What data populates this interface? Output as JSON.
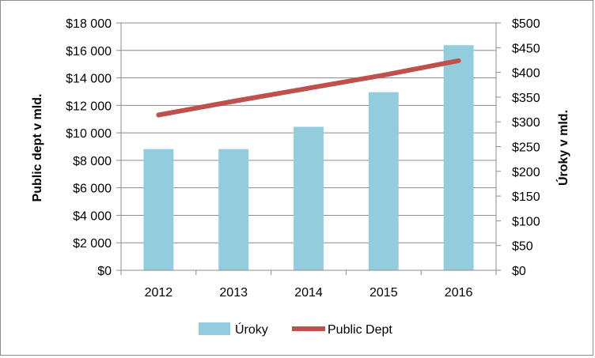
{
  "chart_data": {
    "type": "bar",
    "categories": [
      "2012",
      "2013",
      "2014",
      "2015",
      "2016"
    ],
    "series": [
      {
        "name": "Úroky",
        "type": "bar",
        "axis": "right",
        "color": "#93cddd",
        "values": [
          245,
          245,
          290,
          360,
          455
        ]
      },
      {
        "name": "Public Dept",
        "type": "line",
        "axis": "left",
        "color": "#c0504d",
        "values": [
          11300,
          12300,
          13250,
          14200,
          15250
        ]
      }
    ],
    "title": "",
    "xlabel": "",
    "ylabel": "Public dept v mld.",
    "y2label": "Úroky v mld.",
    "ylim": [
      0,
      18000
    ],
    "y2lim": [
      0,
      500
    ],
    "yticks": [
      "$0",
      "$2 000",
      "$4 000",
      "$6 000",
      "$8 000",
      "$10 000",
      "$12 000",
      "$14 000",
      "$16 000",
      "$18 000"
    ],
    "y2ticks": [
      "$0",
      "$50",
      "$100",
      "$150",
      "$200",
      "$250",
      "$300",
      "$350",
      "$400",
      "$450",
      "$500"
    ],
    "grid": true,
    "legend_position": "bottom"
  }
}
